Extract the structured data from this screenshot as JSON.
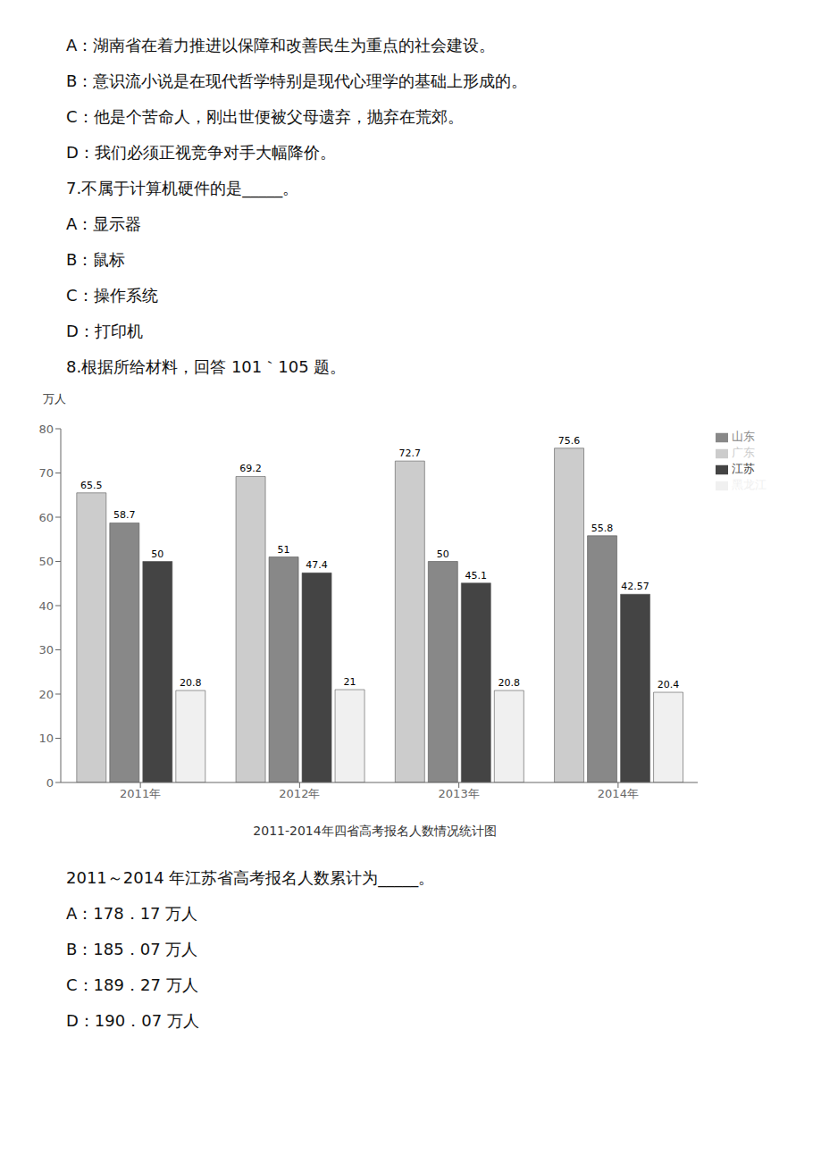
{
  "chart_data": {
    "type": "bar",
    "title": "2011-2014年四省高考报名人数情况统计图",
    "ylabel": "万人",
    "categories": [
      "2011年",
      "2012年",
      "2013年",
      "2014年"
    ],
    "series": [
      {
        "name": "广东",
        "color": "#cccccc",
        "values": [
          65.5,
          69.2,
          72.7,
          75.6
        ]
      },
      {
        "name": "山东",
        "color": "#888888",
        "values": [
          58.7,
          51.0,
          50.0,
          55.8
        ]
      },
      {
        "name": "江苏",
        "color": "#444444",
        "values": [
          50.0,
          47.4,
          45.1,
          42.57
        ]
      },
      {
        "name": "黑龙江",
        "color": "#f0f0f0",
        "values": [
          20.8,
          21.0,
          20.8,
          20.4
        ]
      }
    ],
    "ylim": [
      0,
      80
    ],
    "yticks": [
      0,
      10,
      20,
      30,
      40,
      50,
      60,
      70,
      80
    ],
    "grid": false,
    "legend": "right",
    "data_labels": true,
    "annotations": [
      "A：湖南省在着力推进以保障和改善民生为重点的社会建设。",
      "B：意识流小说是在现代哲学特别是现代心理学的基础上形成的。",
      "C：他是个苦命人，刚出世便被父母遗弃，抛弃在荒郊。",
      "D：我们必须正视竞争对手大幅降价。",
      "7.不属于计算机硬件的是_____。",
      "A：显示器",
      "B：鼠标",
      "C：操作系统",
      "D：打印机",
      "8.根据所给材料，回答 101｀105 题。",
      "2011～2014 年江苏省高考报名人数累计为_____。",
      "A：178．17 万人",
      "B：185．07 万人",
      "C：189．27 万人",
      "D：190．07 万人"
    ]
  }
}
